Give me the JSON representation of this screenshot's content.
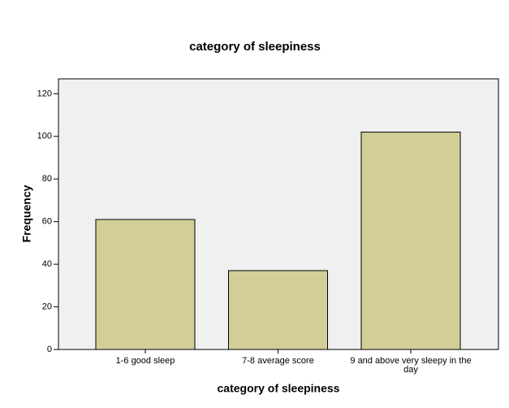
{
  "chart_data": {
    "type": "bar",
    "title": "category of sleepiness",
    "x_label": "category of sleepiness",
    "y_label": "Frequency",
    "categories": [
      "1-6 good sleep",
      "7-8 average score",
      "9 and above very sleepy in the day"
    ],
    "values": [
      61,
      37,
      102
    ],
    "color": "#d3ce97",
    "ylim": [
      0,
      127
    ],
    "yticks": [
      0,
      20,
      40,
      60,
      80,
      100,
      120
    ],
    "grid": false
  }
}
